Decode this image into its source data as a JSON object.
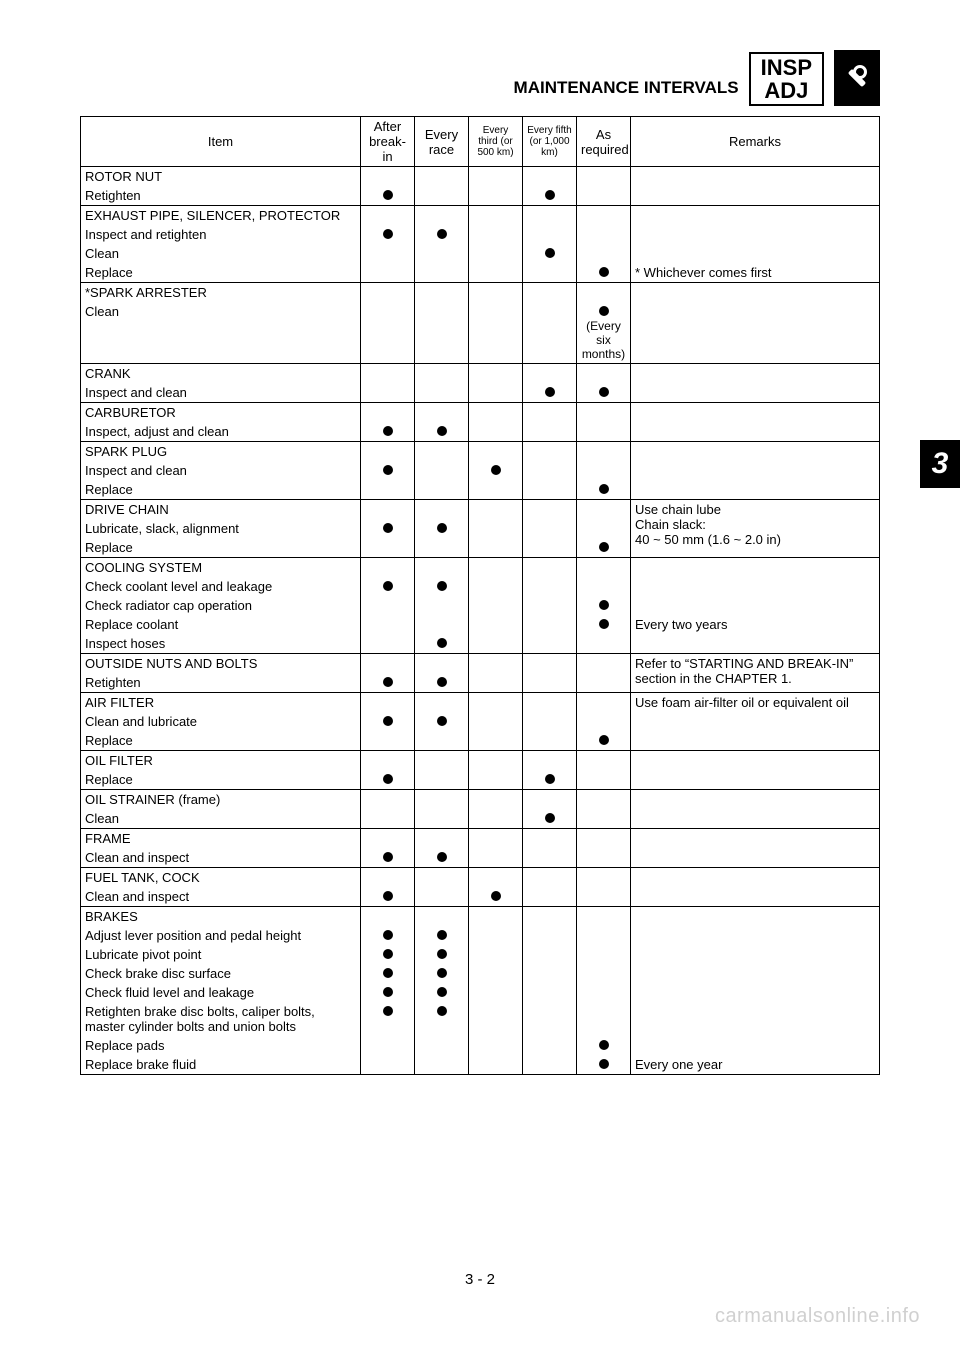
{
  "header": {
    "title": "MAINTENANCE INTERVALS",
    "badge1": "INSP",
    "badge2": "ADJ",
    "tab": "3"
  },
  "page_number": "3 - 2",
  "watermark": "carmanualsonline.info",
  "columns": {
    "item": "Item",
    "after_breakin": "After break-in",
    "every_race": "Every race",
    "every_third": "Every third (or 500 km)",
    "every_fifth": "Every fifth (or 1,000 km)",
    "as_required": "As required",
    "remarks": "Remarks"
  },
  "rows": [
    {
      "head": "ROTOR NUT",
      "subs": [
        {
          "label": "Retighten",
          "marks": [
            true,
            false,
            false,
            true,
            false
          ],
          "rem": ""
        }
      ]
    },
    {
      "head": "EXHAUST PIPE, SILENCER, PROTECTOR",
      "subs": [
        {
          "label": "Inspect and retighten",
          "marks": [
            true,
            true,
            false,
            false,
            false
          ],
          "rem": ""
        },
        {
          "label": "Clean",
          "marks": [
            false,
            false,
            false,
            true,
            false
          ],
          "rem": ""
        },
        {
          "label": "Replace",
          "marks": [
            false,
            false,
            false,
            false,
            true
          ],
          "rem": "* Whichever comes first"
        }
      ]
    },
    {
      "head": "*SPARK ARRESTER",
      "subs": [
        {
          "label": "Clean",
          "marks": [
            false,
            false,
            false,
            false,
            true
          ],
          "rem": "",
          "as_req_note": "(Every six months)"
        }
      ]
    },
    {
      "head": "CRANK",
      "subs": [
        {
          "label": "Inspect and clean",
          "marks": [
            false,
            false,
            false,
            true,
            true
          ],
          "rem": ""
        }
      ]
    },
    {
      "head": "CARBURETOR",
      "subs": [
        {
          "label": "Inspect, adjust and clean",
          "marks": [
            true,
            true,
            false,
            false,
            false
          ],
          "rem": ""
        }
      ]
    },
    {
      "head": "SPARK PLUG",
      "subs": [
        {
          "label": "Inspect and clean",
          "marks": [
            true,
            false,
            true,
            false,
            false
          ],
          "rem": ""
        },
        {
          "label": "Replace",
          "marks": [
            false,
            false,
            false,
            false,
            true
          ],
          "rem": ""
        }
      ]
    },
    {
      "head": "DRIVE CHAIN",
      "remarks": "Use chain lube\nChain slack:\n40 ~ 50 mm (1.6 ~ 2.0 in)",
      "subs": [
        {
          "label": "Lubricate, slack, alignment",
          "marks": [
            true,
            true,
            false,
            false,
            false
          ],
          "rem": ""
        },
        {
          "label": "Replace",
          "marks": [
            false,
            false,
            false,
            false,
            true
          ],
          "rem": ""
        }
      ]
    },
    {
      "head": "COOLING SYSTEM",
      "subs": [
        {
          "label": "Check coolant level and leakage",
          "marks": [
            true,
            true,
            false,
            false,
            false
          ],
          "rem": ""
        },
        {
          "label": "Check radiator cap operation",
          "marks": [
            false,
            false,
            false,
            false,
            true
          ],
          "rem": ""
        },
        {
          "label": "Replace coolant",
          "marks": [
            false,
            false,
            false,
            false,
            true
          ],
          "rem": "Every two years"
        },
        {
          "label": "Inspect hoses",
          "marks": [
            false,
            true,
            false,
            false,
            false
          ],
          "rem": ""
        }
      ]
    },
    {
      "head": "OUTSIDE NUTS AND BOLTS",
      "remarks": "Refer to “STARTING AND BREAK-IN” section in the CHAPTER 1.",
      "subs": [
        {
          "label": "Retighten",
          "marks": [
            true,
            true,
            false,
            false,
            false
          ],
          "rem": ""
        }
      ]
    },
    {
      "head": "AIR FILTER",
      "remarks": "Use foam air-filter oil or equivalent oil",
      "subs": [
        {
          "label": "Clean and lubricate",
          "marks": [
            true,
            true,
            false,
            false,
            false
          ],
          "rem": ""
        },
        {
          "label": "Replace",
          "marks": [
            false,
            false,
            false,
            false,
            true
          ],
          "rem": ""
        }
      ]
    },
    {
      "head": "OIL FILTER",
      "subs": [
        {
          "label": "Replace",
          "marks": [
            true,
            false,
            false,
            true,
            false
          ],
          "rem": ""
        }
      ]
    },
    {
      "head": "OIL STRAINER (frame)",
      "subs": [
        {
          "label": "Clean",
          "marks": [
            false,
            false,
            false,
            true,
            false
          ],
          "rem": ""
        }
      ]
    },
    {
      "head": "FRAME",
      "subs": [
        {
          "label": "Clean and inspect",
          "marks": [
            true,
            true,
            false,
            false,
            false
          ],
          "rem": ""
        }
      ]
    },
    {
      "head": "FUEL TANK, COCK",
      "subs": [
        {
          "label": "Clean and inspect",
          "marks": [
            true,
            false,
            true,
            false,
            false
          ],
          "rem": ""
        }
      ]
    },
    {
      "head": "BRAKES",
      "subs": [
        {
          "label": "Adjust lever position and pedal height",
          "marks": [
            true,
            true,
            false,
            false,
            false
          ],
          "rem": ""
        },
        {
          "label": "Lubricate pivot point",
          "marks": [
            true,
            true,
            false,
            false,
            false
          ],
          "rem": ""
        },
        {
          "label": "Check brake disc surface",
          "marks": [
            true,
            true,
            false,
            false,
            false
          ],
          "rem": ""
        },
        {
          "label": "Check fluid level and leakage",
          "marks": [
            true,
            true,
            false,
            false,
            false
          ],
          "rem": ""
        },
        {
          "label": "Retighten brake disc bolts, caliper bolts, master cylinder bolts and union bolts",
          "marks": [
            true,
            true,
            false,
            false,
            false
          ],
          "rem": ""
        },
        {
          "label": "Replace pads",
          "marks": [
            false,
            false,
            false,
            false,
            true
          ],
          "rem": ""
        },
        {
          "label": "Replace brake fluid",
          "marks": [
            false,
            false,
            false,
            false,
            true
          ],
          "rem": "Every one year"
        }
      ]
    }
  ]
}
